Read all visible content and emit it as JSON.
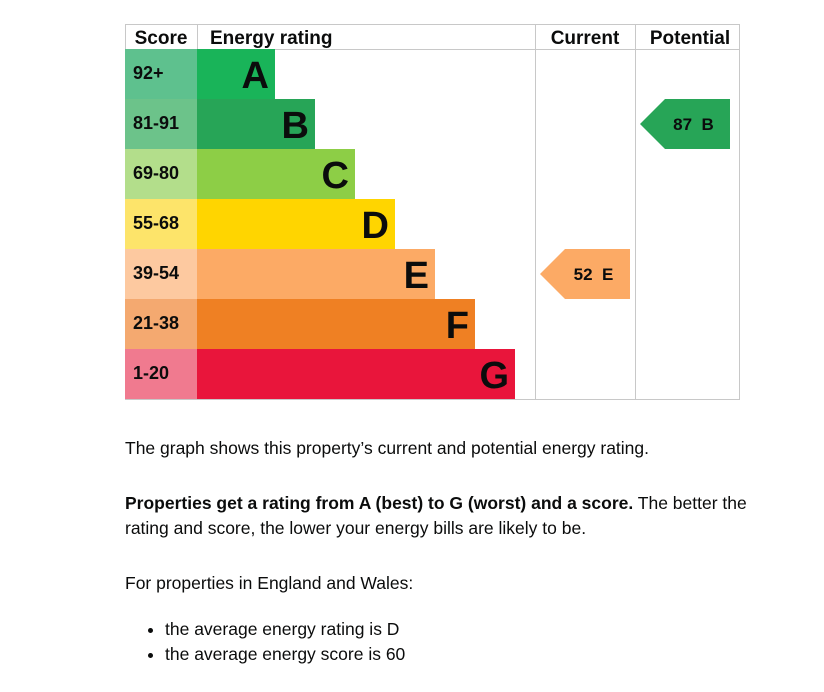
{
  "chart_data": {
    "type": "epc-rating-chart",
    "columns": {
      "score": "Score",
      "rating": "Energy rating",
      "current": "Current",
      "potential": "Potential"
    },
    "bands": [
      {
        "letter": "A",
        "range": "92+",
        "color": "#19b459",
        "score_color": "#5ec18e"
      },
      {
        "letter": "B",
        "range": "81-91",
        "color": "#27a557",
        "score_color": "#6cc38a"
      },
      {
        "letter": "C",
        "range": "69-80",
        "color": "#8dce46",
        "score_color": "#b3de8b"
      },
      {
        "letter": "D",
        "range": "55-68",
        "color": "#ffd500",
        "score_color": "#fde46a"
      },
      {
        "letter": "E",
        "range": "39-54",
        "color": "#fcaa65",
        "score_color": "#fdc9a0"
      },
      {
        "letter": "F",
        "range": "21-38",
        "color": "#ef8023",
        "score_color": "#f4a970"
      },
      {
        "letter": "G",
        "range": "1-20",
        "color": "#e9153b",
        "score_color": "#f07a8f"
      }
    ],
    "current": {
      "score": 52,
      "rating": "E",
      "label": "52  E",
      "color": "#fcaa65"
    },
    "potential": {
      "score": 87,
      "rating": "B",
      "label": "87  B",
      "color": "#27a557"
    }
  },
  "text": {
    "intro": "The graph shows this property’s current and potential energy rating.",
    "bold_lead": "Properties get a rating from A (best) to G (worst) and a score.",
    "rest": " The better the rating and score, the lower your energy bills are likely to be.",
    "region": "For properties in England and Wales:",
    "bullets": [
      "the average energy rating is D",
      "the average energy score is 60"
    ]
  }
}
